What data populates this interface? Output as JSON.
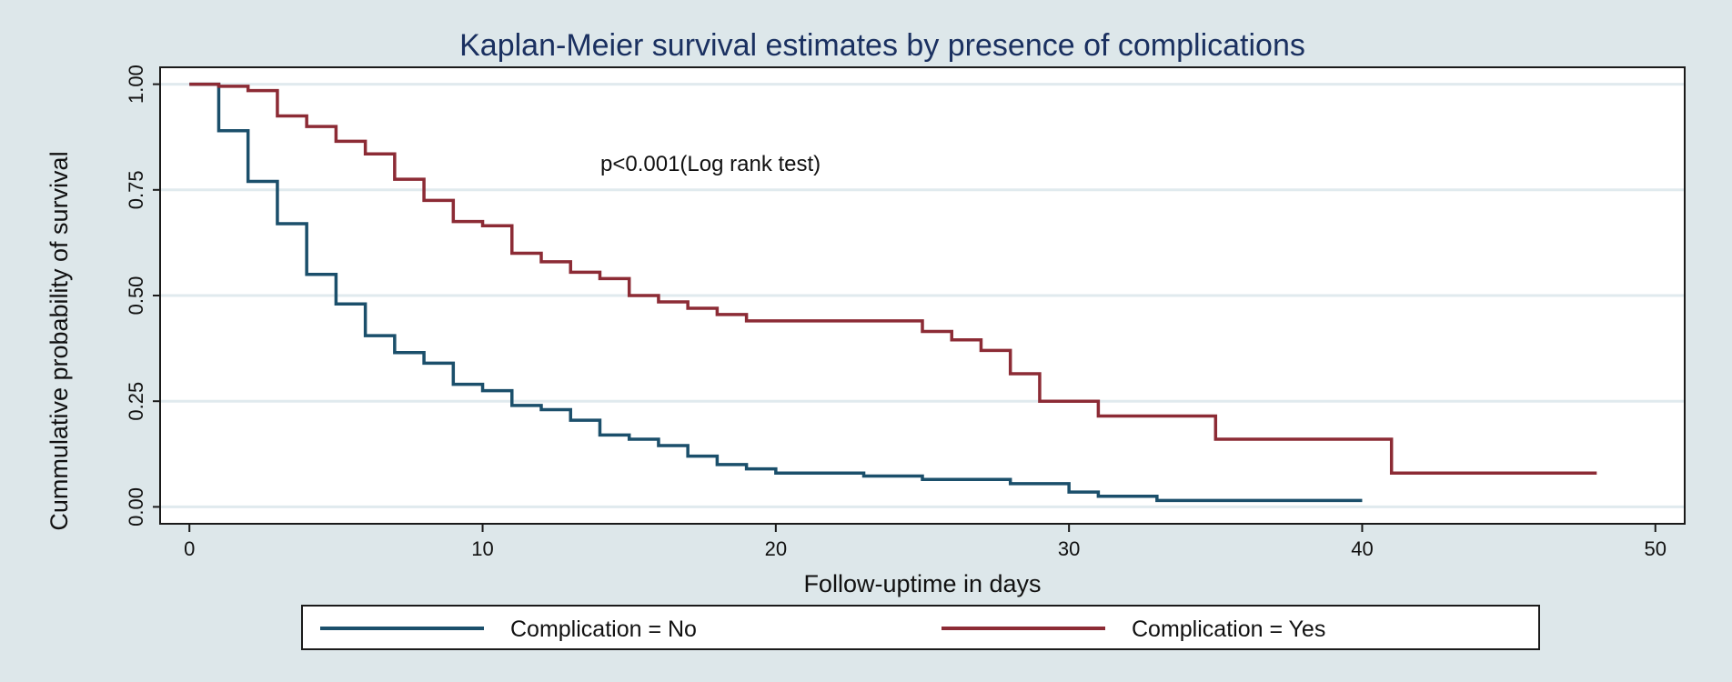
{
  "chart_data": {
    "type": "line",
    "step": true,
    "title": "Kaplan-Meier survival estimates by presence of complications",
    "xlabel": "Follow-uptime in days",
    "ylabel": "Cummulative probability of survival",
    "xlim": [
      -1,
      51
    ],
    "ylim": [
      -0.04,
      1.04
    ],
    "xticks": [
      0,
      10,
      20,
      30,
      40,
      50
    ],
    "yticks": [
      0,
      0.25,
      0.5,
      0.75,
      1
    ],
    "xtick_labels": [
      "0",
      "10",
      "20",
      "30",
      "40",
      "50"
    ],
    "ytick_labels": [
      "0.00",
      "0.25",
      "0.50",
      "0.75",
      "1.00"
    ],
    "grid": true,
    "legend_position": "bottom",
    "annotation": {
      "text": "p<0.001(Log rank test)",
      "x": 15,
      "y": 0.805
    },
    "series": [
      {
        "name": "Complication = No",
        "color": "#1b4f6b",
        "x": [
          0,
          1,
          2,
          3,
          4,
          5,
          6,
          7,
          8,
          9,
          10,
          11,
          12,
          13,
          14,
          15,
          16,
          17,
          18,
          19,
          20,
          23,
          25,
          28,
          30,
          31,
          33,
          40
        ],
        "y": [
          1.0,
          0.89,
          0.77,
          0.67,
          0.55,
          0.48,
          0.405,
          0.365,
          0.34,
          0.29,
          0.275,
          0.24,
          0.23,
          0.205,
          0.17,
          0.16,
          0.145,
          0.12,
          0.1,
          0.09,
          0.08,
          0.073,
          0.065,
          0.055,
          0.035,
          0.025,
          0.015,
          0.015
        ]
      },
      {
        "name": "Complication = Yes",
        "color": "#8c2b35",
        "x": [
          0,
          1,
          2,
          3,
          4,
          5,
          6,
          7,
          8,
          9,
          10,
          11,
          12,
          13,
          14,
          15,
          16,
          17,
          18,
          19,
          25,
          26,
          27,
          28,
          29,
          31,
          35,
          41,
          48
        ],
        "y": [
          1.0,
          0.995,
          0.985,
          0.925,
          0.9,
          0.865,
          0.835,
          0.775,
          0.725,
          0.675,
          0.665,
          0.6,
          0.58,
          0.555,
          0.54,
          0.5,
          0.485,
          0.47,
          0.455,
          0.44,
          0.415,
          0.395,
          0.37,
          0.315,
          0.25,
          0.215,
          0.16,
          0.08,
          0.08
        ]
      }
    ]
  }
}
